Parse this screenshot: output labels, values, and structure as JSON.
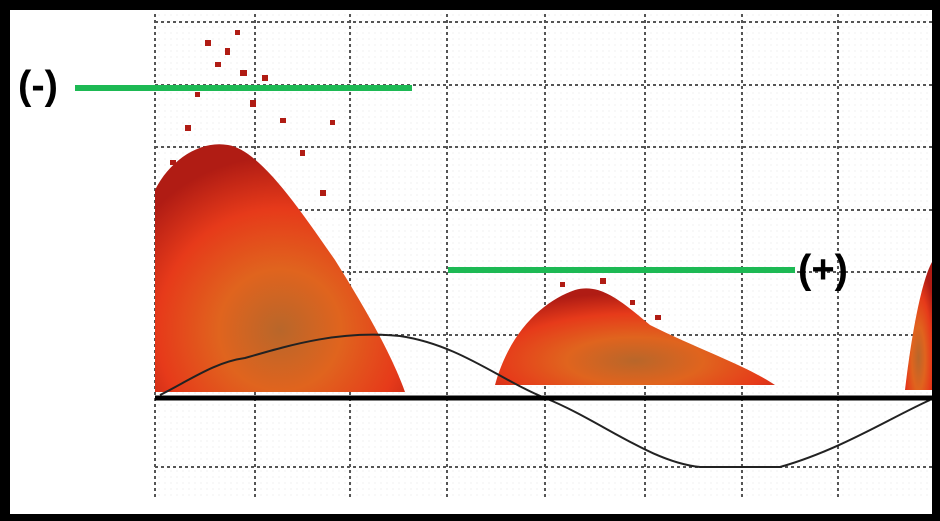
{
  "labels": {
    "negative": "(-)",
    "positive": "(+)"
  }
}
